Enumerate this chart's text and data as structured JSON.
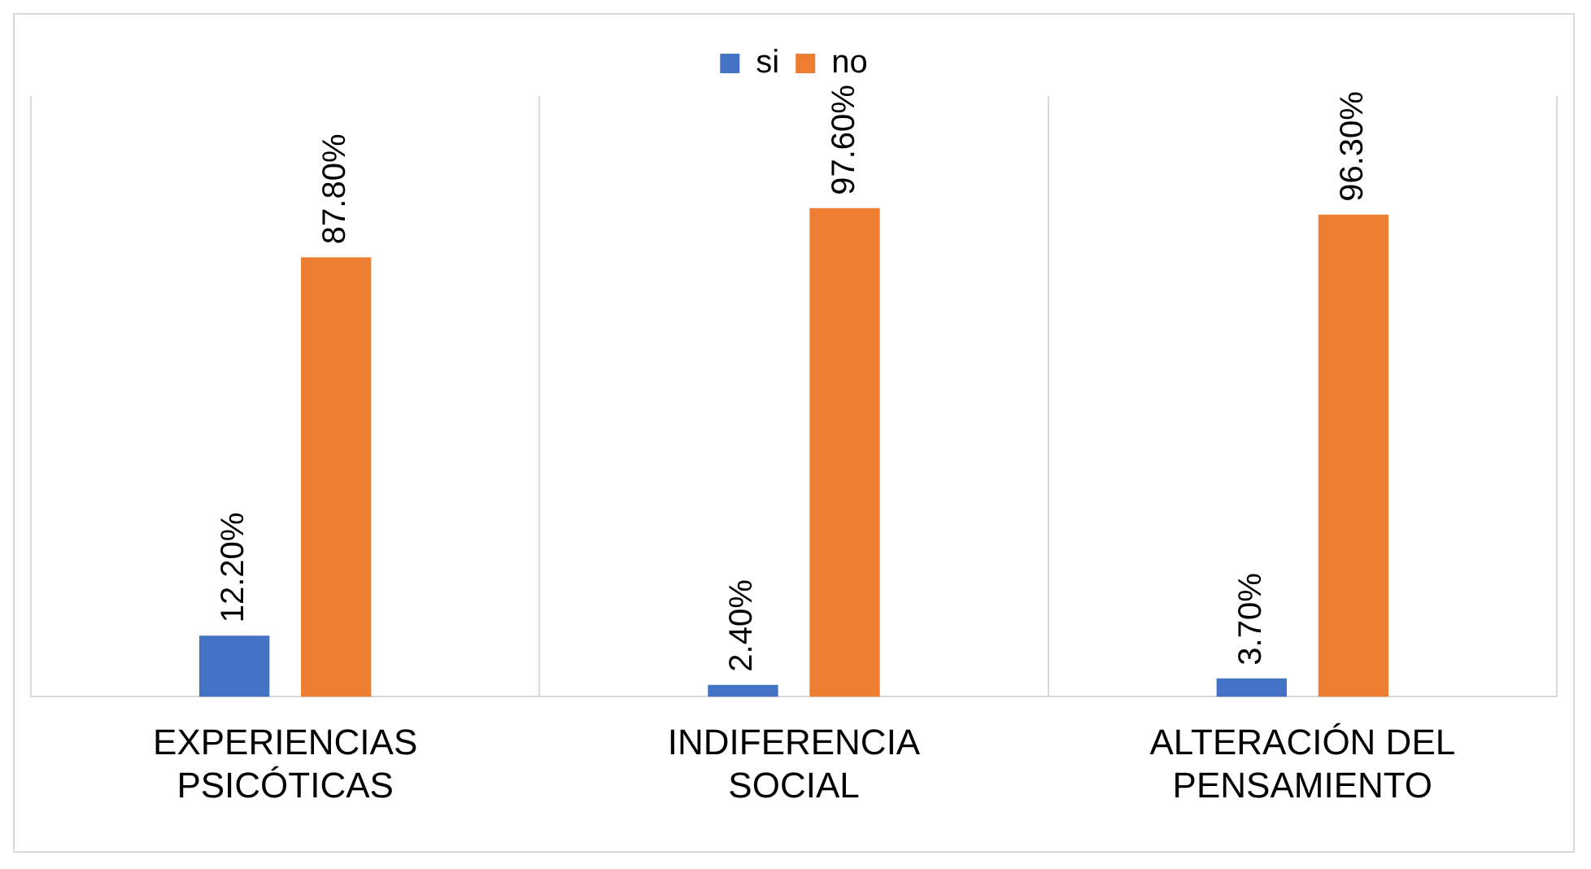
{
  "chart_data": {
    "type": "bar",
    "categories": [
      "EXPERIENCIAS PSICÓTICAS",
      "INDIFERENCIA SOCIAL",
      "ALTERACIÓN DEL PENSAMIENTO"
    ],
    "series": [
      {
        "name": "si",
        "color": "#4472c4",
        "values": [
          12.2,
          2.4,
          3.7
        ],
        "value_labels": [
          "12.20%",
          "2.40%",
          "3.70%"
        ]
      },
      {
        "name": "no",
        "color": "#ed7d31",
        "values": [
          87.8,
          97.6,
          96.3
        ],
        "value_labels": [
          "87.80%",
          "97.60%",
          "96.30%"
        ]
      }
    ],
    "legend": "top",
    "grid": "x",
    "tick_labels": "x"
  }
}
